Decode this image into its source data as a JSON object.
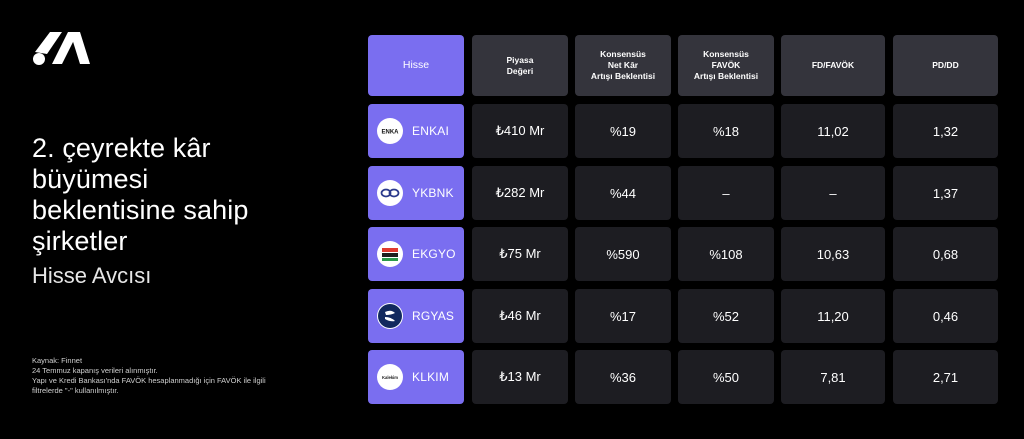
{
  "brand": {
    "logo_icon": "stylized-m-logo"
  },
  "headline": {
    "lines": [
      "2. çeyrekte kâr",
      "büyümesi",
      "beklentisine sahip",
      "şirketler"
    ],
    "subtitle": "Hisse Avcısı"
  },
  "footnotes": [
    "Kaynak: Finnet",
    "24 Temmuz kapanış verileri alınmıştır.",
    "Yapı ve Kredi Bankası'nda FAVÖK hesaplanmadığı için FAVÖK ile ilgili",
    "filtrelerde \"-\" kullanılmıştır."
  ],
  "table": {
    "headers": [
      [
        "Hisse"
      ],
      [
        "Piyasa",
        "Değeri"
      ],
      [
        "Konsensüs",
        "Net Kâr",
        "Artışı Beklentisi"
      ],
      [
        "Konsensüs",
        "FAVÖK",
        "Artışı Beklentisi"
      ],
      [
        "FD/FAVÖK"
      ],
      [
        "PD/DD"
      ]
    ],
    "rows": [
      {
        "ticker": "ENKAI",
        "logo": "enka-logo",
        "logo_text": "ENKA",
        "values": [
          "₺410 Mr",
          "%19",
          "%18",
          "11,02",
          "1,32"
        ]
      },
      {
        "ticker": "YKBNK",
        "logo": "yapikredi-logo",
        "logo_text": "",
        "values": [
          "₺282 Mr",
          "%44",
          "–",
          "–",
          "1,37"
        ]
      },
      {
        "ticker": "EKGYO",
        "logo": "emlak-konut-logo",
        "logo_text": "",
        "values": [
          "₺75 Mr",
          "%590",
          "%108",
          "10,63",
          "0,68"
        ]
      },
      {
        "ticker": "RGYAS",
        "logo": "ronesans-logo",
        "logo_text": "",
        "values": [
          "₺46 Mr",
          "%17",
          "%52",
          "11,20",
          "0,46"
        ]
      },
      {
        "ticker": "KLKIM",
        "logo": "kalekim-logo",
        "logo_text": "Kalekim",
        "values": [
          "₺13 Mr",
          "%36",
          "%50",
          "7,81",
          "2,71"
        ]
      }
    ]
  },
  "colors": {
    "accent": "#7a6ef0",
    "header_bg": "#34343c",
    "cell_bg": "#1d1d22",
    "background": "#000000"
  }
}
